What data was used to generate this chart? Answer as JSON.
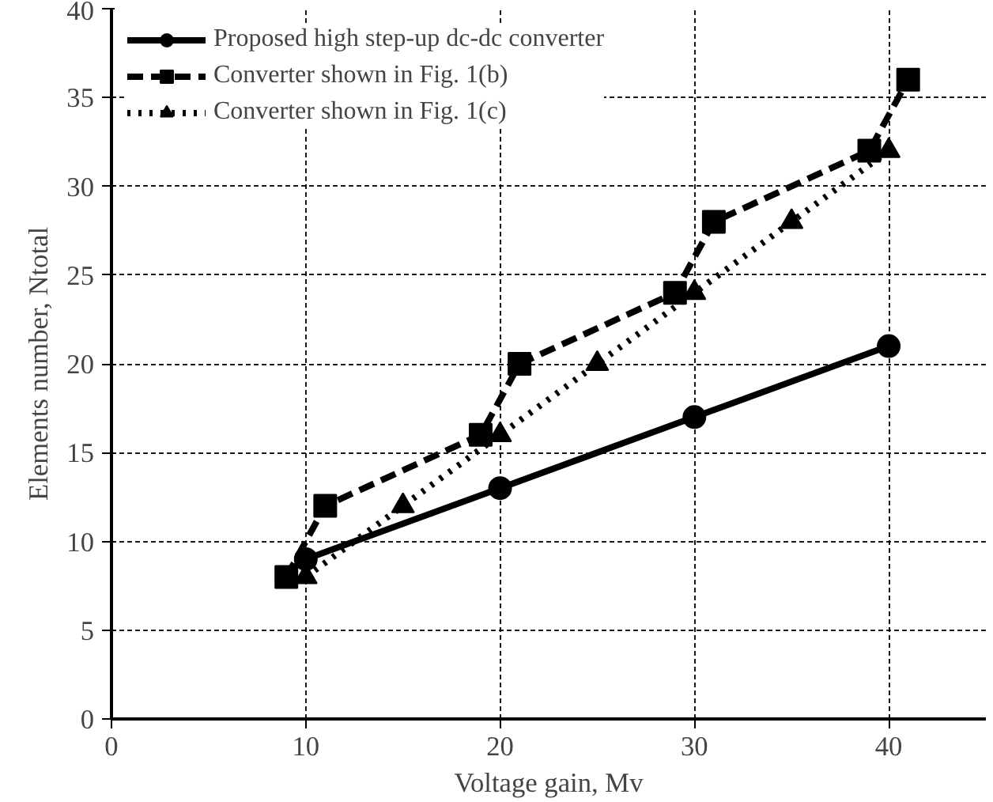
{
  "chart_data": {
    "type": "line",
    "xlabel": "Voltage gain, Mv",
    "ylabel": "Elements number, Ntotal",
    "xlim": [
      0,
      45
    ],
    "ylim": [
      0,
      40
    ],
    "xticks": [
      0,
      10,
      20,
      30,
      40
    ],
    "yticks": [
      0,
      5,
      10,
      15,
      20,
      25,
      30,
      35,
      40
    ],
    "grid": true,
    "legend": "top left",
    "series": [
      {
        "name": "Proposed high step-up dc-dc converter",
        "color": "#000000",
        "marker": "circle",
        "line_style": "solid",
        "x": [
          10,
          20,
          30,
          40
        ],
        "values": [
          9,
          13,
          17,
          21
        ]
      },
      {
        "name": "Converter shown in Fig. 1(b)",
        "color": "#000000",
        "marker": "square",
        "line_style": "dashed",
        "x": [
          9,
          11,
          19,
          21,
          29,
          31,
          39,
          41
        ],
        "values": [
          8,
          12,
          16,
          20,
          24,
          28,
          32,
          36
        ]
      },
      {
        "name": "Converter shown in Fig. 1(c)",
        "color": "#000000",
        "marker": "triangle",
        "line_style": "dotted",
        "x": [
          10,
          15,
          20,
          25,
          30,
          35,
          40
        ],
        "values": [
          8,
          12,
          16,
          20,
          24,
          28,
          32
        ]
      }
    ]
  }
}
